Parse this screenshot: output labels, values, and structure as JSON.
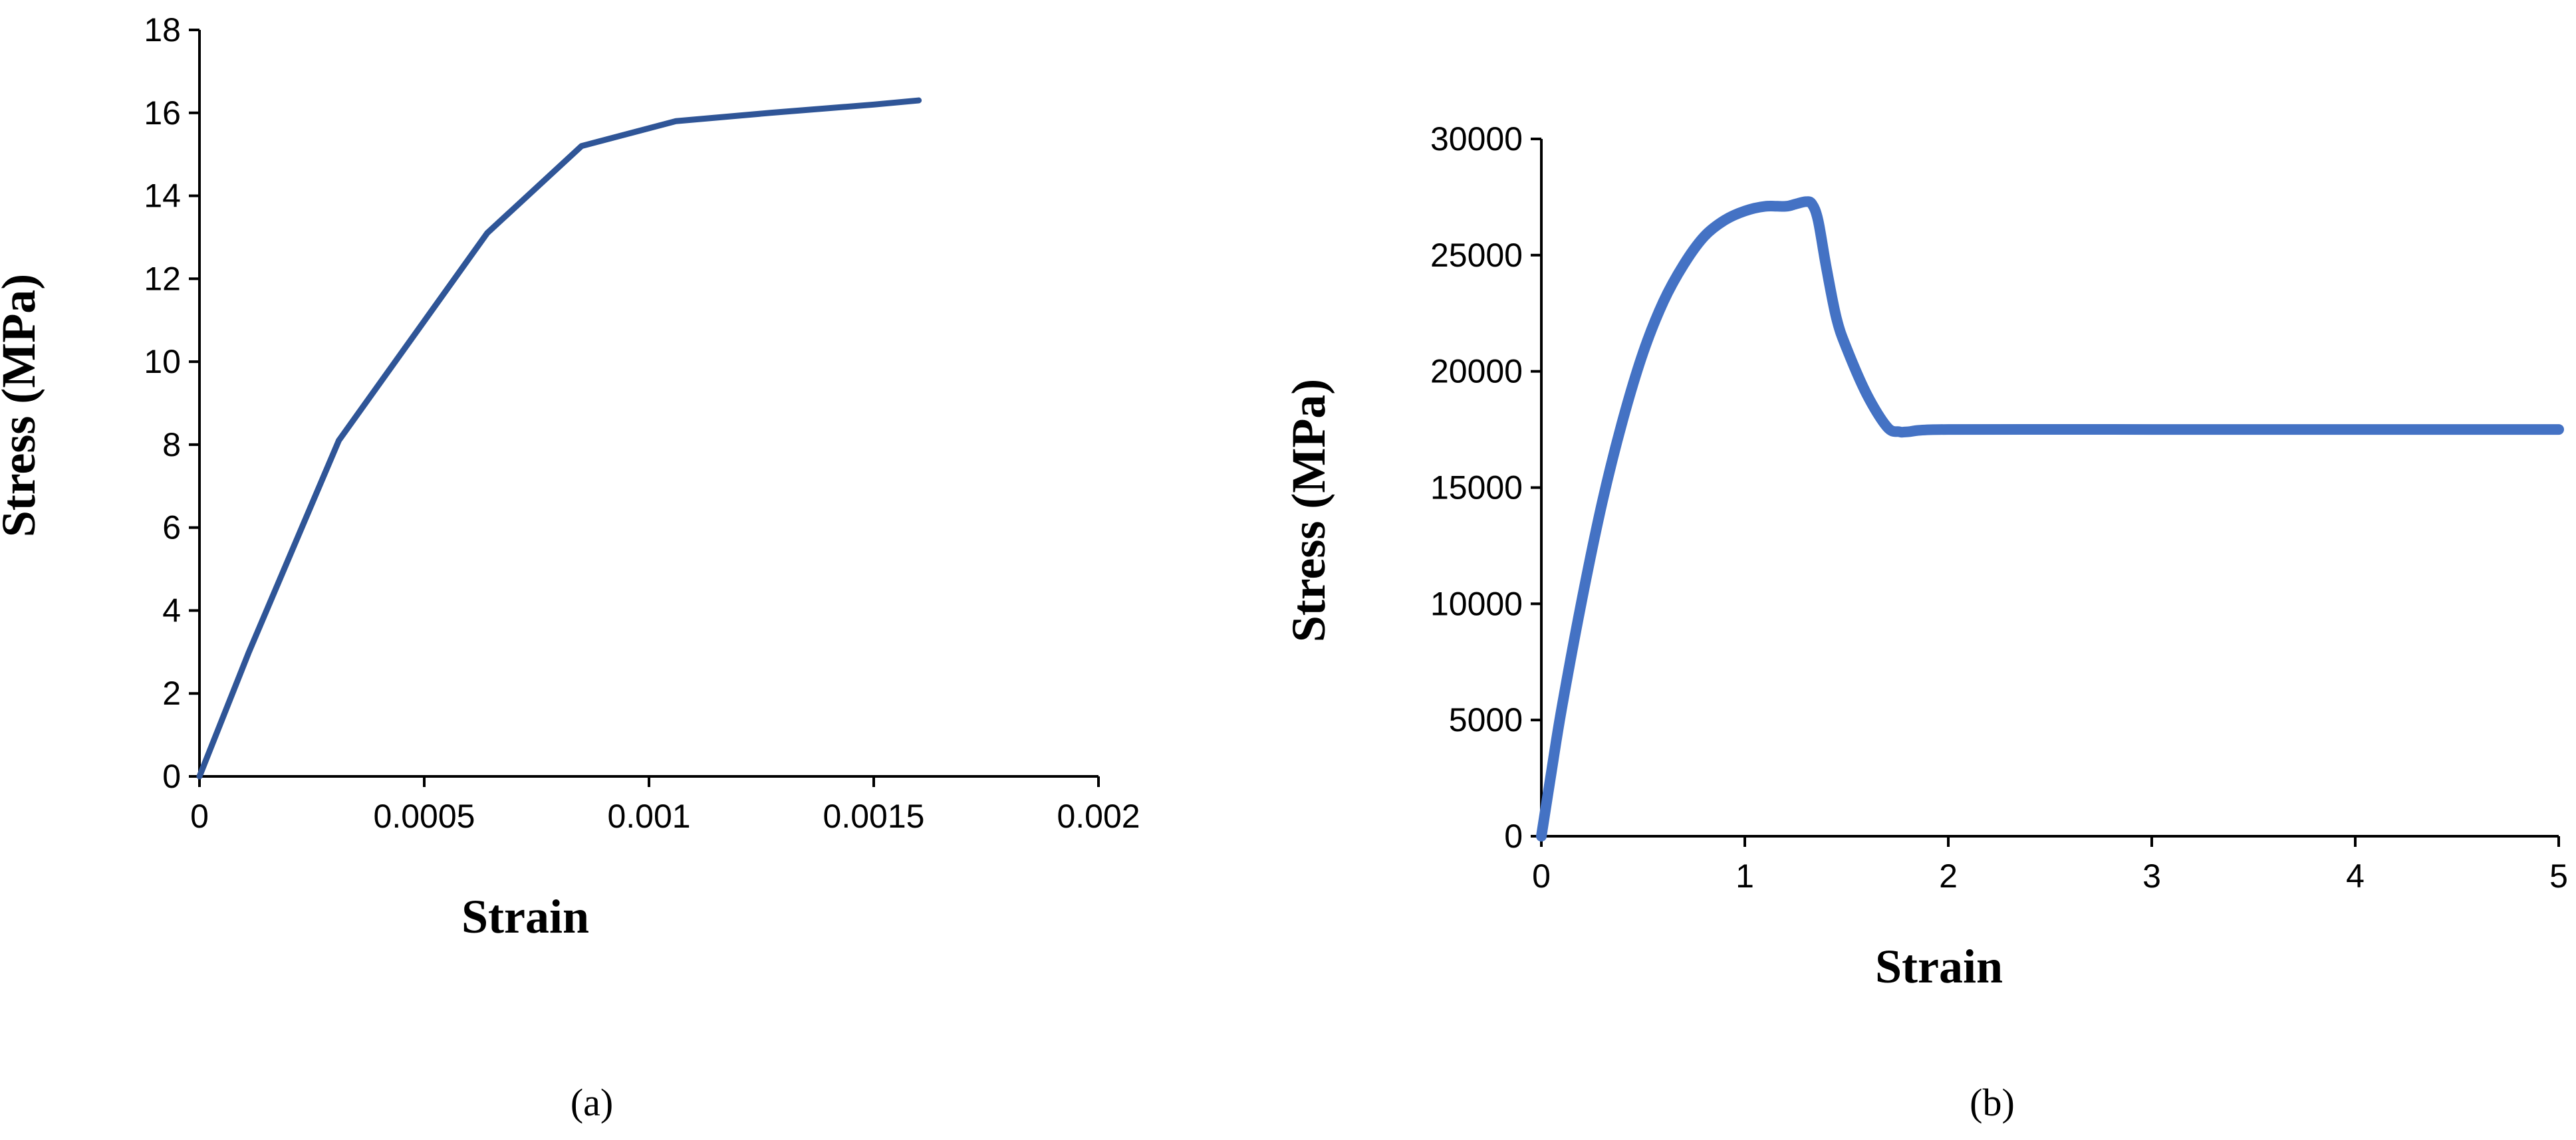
{
  "chart_data": [
    {
      "type": "line",
      "panel": "(a)",
      "xlabel": "Strain",
      "ylabel": "Stress (MPa)",
      "xlim": [
        0,
        0.002
      ],
      "ylim": [
        0,
        18
      ],
      "x_ticks": [
        0,
        0.0005,
        0.001,
        0.0015,
        0.002
      ],
      "x_tick_labels": [
        "0",
        "0.0005",
        "0.001",
        "0.0015",
        "0.002"
      ],
      "y_ticks": [
        0,
        2,
        4,
        6,
        8,
        10,
        12,
        14,
        16,
        18
      ],
      "y_tick_labels": [
        "0",
        "2",
        "4",
        "6",
        "8",
        "10",
        "12",
        "14",
        "16",
        "18"
      ],
      "grid": false,
      "color": "#2f5597",
      "series": [
        {
          "x": [
            0,
            0.00011,
            0.00031,
            0.00064,
            0.00085,
            0.00106,
            0.00127,
            0.0015,
            0.0016
          ],
          "values": [
            0,
            3.0,
            8.1,
            13.1,
            15.2,
            15.8,
            16.0,
            16.2,
            16.3
          ]
        }
      ]
    },
    {
      "type": "line",
      "panel": "(b)",
      "xlabel": "Strain",
      "ylabel": "Stress (MPa)",
      "xlim": [
        0,
        5
      ],
      "ylim": [
        0,
        30000
      ],
      "x_ticks": [
        0,
        1,
        2,
        3,
        4,
        5
      ],
      "x_tick_labels": [
        "0",
        "1",
        "2",
        "3",
        "4",
        "5"
      ],
      "y_ticks": [
        0,
        5000,
        10000,
        15000,
        20000,
        25000,
        30000
      ],
      "y_tick_labels": [
        "0",
        "5000",
        "10000",
        "15000",
        "20000",
        "25000",
        "30000"
      ],
      "grid": false,
      "color": "#4472c4",
      "series": [
        {
          "x": [
            0,
            0.05,
            0.1,
            0.2,
            0.3,
            0.4,
            0.5,
            0.6,
            0.7,
            0.8,
            0.9,
            1.0,
            1.1,
            1.2,
            1.25,
            1.3,
            1.33,
            1.36,
            1.4,
            1.45,
            1.5,
            1.6,
            1.7,
            1.76,
            1.8,
            2.0,
            3.0,
            4.0,
            5.0
          ],
          "values": [
            0,
            2800,
            5500,
            10200,
            14400,
            17900,
            20800,
            23000,
            24600,
            25800,
            26500,
            26900,
            27100,
            27100,
            27200,
            27300,
            27200,
            26500,
            24500,
            22300,
            21000,
            19000,
            17600,
            17400,
            17400,
            17500,
            17500,
            17500,
            17500
          ]
        }
      ]
    }
  ]
}
